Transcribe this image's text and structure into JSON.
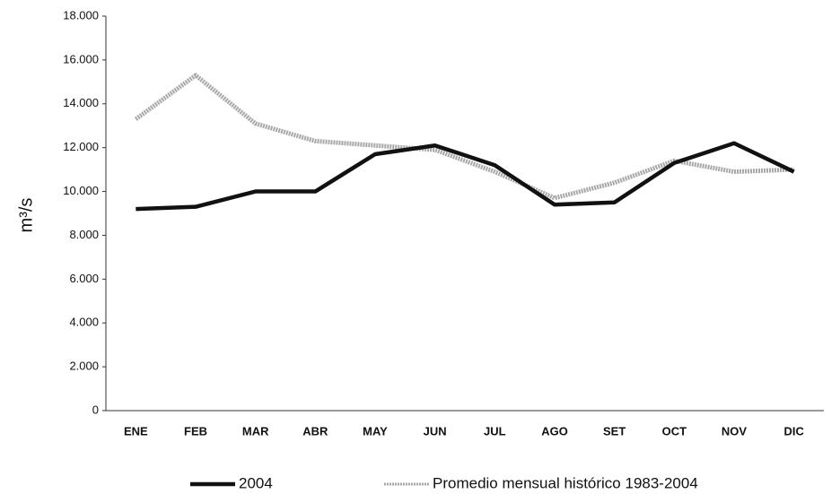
{
  "chart_data": {
    "type": "line",
    "y_label": "m³/s",
    "categories": [
      "ENE",
      "FEB",
      "MAR",
      "ABR",
      "MAY",
      "JUN",
      "JUL",
      "AGO",
      "SET",
      "OCT",
      "NOV",
      "DIC"
    ],
    "series": [
      {
        "name": "2004",
        "color": "#111111",
        "values": [
          9200,
          9300,
          10000,
          10000,
          11700,
          12100,
          11200,
          9400,
          9500,
          11300,
          12200,
          10900
        ]
      },
      {
        "name": "Promedio mensual histórico 1983-2004",
        "color": "#a8a8a8",
        "values": [
          13300,
          15300,
          13100,
          12300,
          12100,
          11900,
          10900,
          9700,
          10400,
          11400,
          10900,
          11000
        ]
      }
    ],
    "ylim": [
      0,
      18000
    ],
    "yticks": [
      0,
      {
        "value": 2000,
        "label": "2.000"
      },
      {
        "value": 4000,
        "label": "4.000"
      },
      {
        "value": 6000,
        "label": "6.000"
      },
      {
        "value": 8000,
        "label": "8.000"
      },
      {
        "value": 10000,
        "label": "10.000"
      },
      {
        "value": 12000,
        "label": "12.000"
      },
      {
        "value": 14000,
        "label": "14.000"
      },
      {
        "value": 16000,
        "label": "16.000"
      },
      {
        "value": 18000,
        "label": "18.000"
      }
    ],
    "grid": false,
    "legend": "bottom"
  }
}
